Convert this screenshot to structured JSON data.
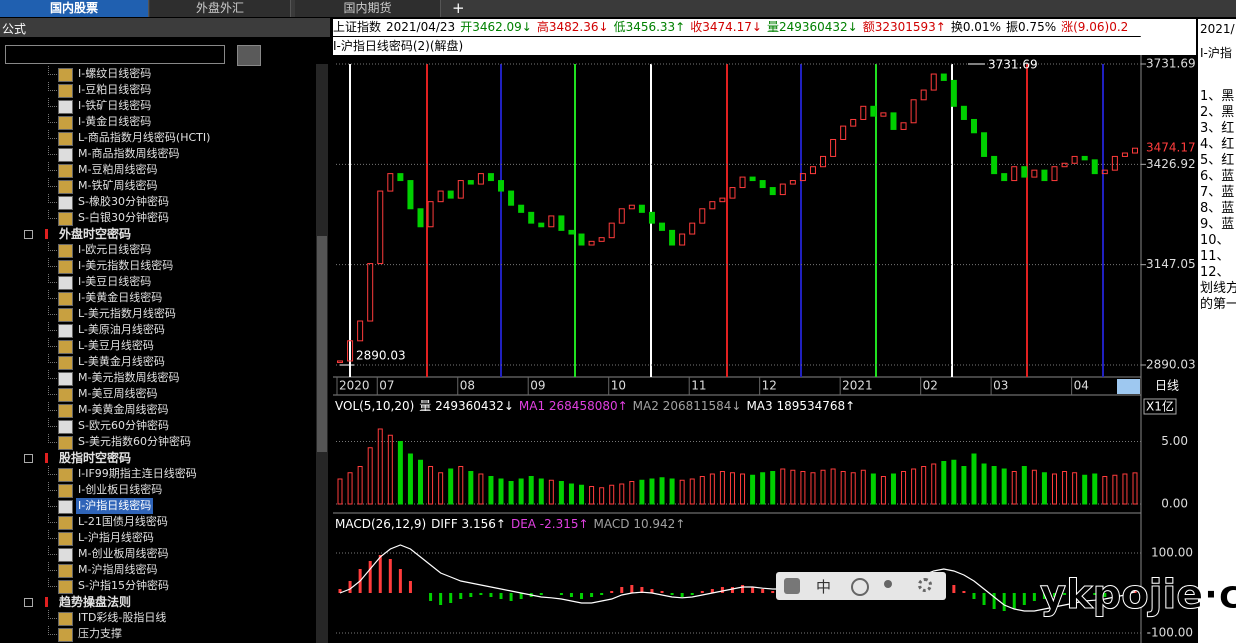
{
  "tabs": [
    "国内股票",
    "外盘外汇",
    "国内期货"
  ],
  "sidebar": {
    "title": "公式",
    "selected": "I-沪指日线密码",
    "tree": [
      {
        "items": [
          "I-螺纹日线密码",
          "I-豆粕日线密码",
          "I-铁矿日线密码",
          "I-黄金日线密码",
          "L-商品指数月线密码(HCTI)",
          "M-商品指数周线密码",
          "M-豆粕周线密码",
          "M-铁矿周线密码",
          "S-橡胶30分钟密码",
          "S-白银30分钟密码"
        ]
      },
      {
        "name": "外盘时空密码",
        "items": [
          "I-欧元日线密码",
          "I-美元指数日线密码",
          "I-美豆日线密码",
          "I-美黄金日线密码",
          "L-美元指数月线密码",
          "L-美原油月线密码",
          "L-美豆月线密码",
          "L-美黄金月线密码",
          "M-美元指数周线密码",
          "M-美豆周线密码",
          "M-美黄金周线密码",
          "S-欧元60分钟密码",
          "S-美元指数60分钟密码"
        ]
      },
      {
        "name": "股指时空密码",
        "items": [
          "I-IF99期指主连日线密码",
          "I-创业板日线密码",
          "I-沪指日线密码",
          "L-21国债月线密码",
          "L-沪指月线密码",
          "M-创业板周线密码",
          "M-沪指周线密码",
          "S-沪指15分钟密码"
        ]
      },
      {
        "name": "趋势操盘法则",
        "items": [
          "ITD彩线-股指日线",
          "压力支撑"
        ]
      }
    ]
  },
  "quote_header": {
    "name": "上证指数",
    "date": "2021/04/23",
    "fields": [
      {
        "text": "开3462.09↓",
        "color": "#008000"
      },
      {
        "text": "高3482.36↓",
        "color": "#d00000"
      },
      {
        "text": "低3456.33↑",
        "color": "#008000"
      },
      {
        "text": "收3474.17↓",
        "color": "#d00000"
      },
      {
        "text": "量249360432↓",
        "color": "#008000"
      },
      {
        "text": "额32301593↑",
        "color": "#d00000"
      },
      {
        "text": "换0.01%",
        "color": "#000000"
      },
      {
        "text": "振0.75%",
        "color": "#000000"
      },
      {
        "text": "涨(9.06)0.2",
        "color": "#d00000"
      }
    ]
  },
  "indicator_title": "I-沪指日线密码(2)(解盘)",
  "chart_data": [
    {
      "type": "price",
      "x_axis_label": "日线",
      "log_scale": true,
      "grid": true,
      "up_color": "#ff3c3c",
      "down_color": "#00d000",
      "last_value": 3474.17,
      "last_color": "#ff3c3c",
      "categories": [
        "2020",
        null,
        null,
        null,
        "07",
        null,
        null,
        null,
        null,
        null,
        null,
        null,
        "08",
        null,
        null,
        null,
        null,
        null,
        null,
        "09",
        null,
        null,
        null,
        null,
        null,
        null,
        null,
        "10",
        null,
        null,
        null,
        null,
        null,
        null,
        null,
        "11",
        null,
        null,
        null,
        null,
        null,
        null,
        "12",
        null,
        null,
        null,
        null,
        null,
        null,
        null,
        "2021",
        null,
        null,
        null,
        null,
        null,
        null,
        null,
        "02",
        null,
        null,
        null,
        null,
        null,
        null,
        "03",
        null,
        null,
        null,
        null,
        null,
        null,
        null,
        "04",
        null,
        null,
        null,
        null,
        null,
        null
      ],
      "values": [
        2900,
        2950,
        3000,
        3150,
        3350,
        3400,
        3380,
        3300,
        3250,
        3320,
        3350,
        3330,
        3380,
        3370,
        3400,
        3380,
        3350,
        3310,
        3290,
        3260,
        3250,
        3280,
        3240,
        3230,
        3200,
        3210,
        3220,
        3260,
        3300,
        3310,
        3290,
        3260,
        3240,
        3200,
        3230,
        3260,
        3300,
        3320,
        3330,
        3360,
        3390,
        3380,
        3360,
        3340,
        3370,
        3380,
        3400,
        3420,
        3450,
        3500,
        3540,
        3560,
        3600,
        3570,
        3580,
        3530,
        3550,
        3620,
        3650,
        3700,
        3680,
        3600,
        3560,
        3520,
        3450,
        3400,
        3380,
        3420,
        3390,
        3410,
        3380,
        3420,
        3430,
        3450,
        3440,
        3400,
        3410,
        3450,
        3460,
        3474.17
      ],
      "ylim": [
        2890.03,
        3731.69
      ],
      "yticks": [
        2890.03,
        3147.05,
        3426.92,
        3731.69
      ]
    },
    {
      "type": "volume",
      "title": "VOL(5,10,20)",
      "unit_label": "X1亿",
      "grid": true,
      "readouts": [
        {
          "text": "量 249360432↓",
          "color": "#ffffff"
        },
        {
          "text": "MA1 268458080↑",
          "color": "#e040e0"
        },
        {
          "text": "MA2 206811584↓",
          "color": "#a0a0a0"
        },
        {
          "text": "MA3 189534768↑",
          "color": "#ffffff"
        }
      ],
      "values": [
        2,
        2.5,
        3,
        4.5,
        6,
        5.5,
        5,
        4,
        3.5,
        3,
        2.5,
        2.8,
        3,
        2.6,
        2.4,
        2.2,
        2,
        1.8,
        2,
        2.2,
        2,
        1.9,
        1.8,
        1.6,
        1.5,
        1.4,
        1.3,
        1.5,
        1.6,
        1.8,
        1.9,
        2,
        2.1,
        2,
        1.9,
        2,
        2.2,
        2.4,
        2.6,
        2.5,
        2.4,
        2.3,
        2.5,
        2.6,
        2.8,
        2.7,
        2.6,
        2.5,
        2.7,
        2.8,
        2.6,
        2.5,
        2.7,
        2.4,
        2.2,
        2.4,
        2.6,
        2.8,
        3,
        3.2,
        3.4,
        3.5,
        3,
        4,
        3.2,
        3,
        2.8,
        2.6,
        3,
        2.7,
        2.5,
        2.4,
        2.6,
        2.5,
        2.3,
        2.4,
        2.2,
        2.3,
        2.4,
        2.49
      ],
      "ylim": [
        0,
        7.2
      ],
      "yticks": [
        {
          "value": 0,
          "label": "0.00"
        },
        {
          "value": 5,
          "label": "5.00"
        }
      ]
    },
    {
      "type": "macd",
      "title": "MACD(26,12,9)",
      "grid": true,
      "up_color": "#ff3c3c",
      "down_color": "#00d000",
      "diff_color": "#ffffff",
      "readouts": [
        {
          "text": "DIFF 3.156↑",
          "color": "#ffffff"
        },
        {
          "text": "DEA -2.315↑",
          "color": "#e040e0"
        },
        {
          "text": "MACD 10.942↑",
          "color": "#a0a0a0"
        }
      ],
      "values": [
        10,
        30,
        60,
        80,
        95,
        85,
        60,
        30,
        0,
        -20,
        -30,
        -25,
        -15,
        -10,
        -5,
        -10,
        -15,
        -20,
        -15,
        -10,
        -5,
        0,
        -5,
        -10,
        -15,
        -10,
        -5,
        5,
        15,
        20,
        15,
        10,
        5,
        -5,
        -10,
        -5,
        5,
        10,
        15,
        15,
        20,
        15,
        10,
        5,
        5,
        8,
        10,
        12,
        15,
        18,
        20,
        18,
        15,
        10,
        5,
        -5,
        0,
        10,
        20,
        30,
        30,
        20,
        5,
        -15,
        -30,
        -40,
        -45,
        -40,
        -30,
        -20,
        -15,
        -10,
        -5,
        -5,
        0,
        -5,
        -10,
        -5,
        0,
        10.942
      ],
      "diff": [
        0,
        10,
        30,
        60,
        90,
        110,
        120,
        110,
        90,
        70,
        50,
        40,
        30,
        25,
        20,
        15,
        10,
        5,
        0,
        -5,
        -10,
        -12,
        -15,
        -20,
        -25,
        -25,
        -20,
        -15,
        -5,
        0,
        2,
        0,
        -5,
        -10,
        -12,
        -10,
        -5,
        0,
        5,
        10,
        15,
        15,
        12,
        10,
        10,
        12,
        15,
        18,
        22,
        28,
        35,
        38,
        40,
        38,
        35,
        30,
        32,
        38,
        45,
        55,
        60,
        55,
        45,
        30,
        10,
        -10,
        -30,
        -40,
        -45,
        -45,
        -40,
        -35,
        -30,
        -25,
        -20,
        -18,
        -15,
        -10,
        -5,
        3.156
      ],
      "ylim": [
        -125,
        190
      ],
      "yticks": [
        {
          "value": -100,
          "label": "-100.00"
        },
        {
          "value": 100,
          "label": "100.00"
        }
      ]
    }
  ],
  "right_panel": {
    "date": "2021/",
    "title": "I-沪指",
    "lines": [
      "1、黑",
      "2、黑",
      "3、红",
      "4、红",
      "5、红",
      "6、蓝",
      "7、蓝",
      "8、蓝",
      "9、蓝",
      "10、",
      "11、",
      "12、",
      "划线方",
      "的第一"
    ]
  },
  "toolbar": {
    "label": "中"
  },
  "watermark": "ykpojie·com"
}
